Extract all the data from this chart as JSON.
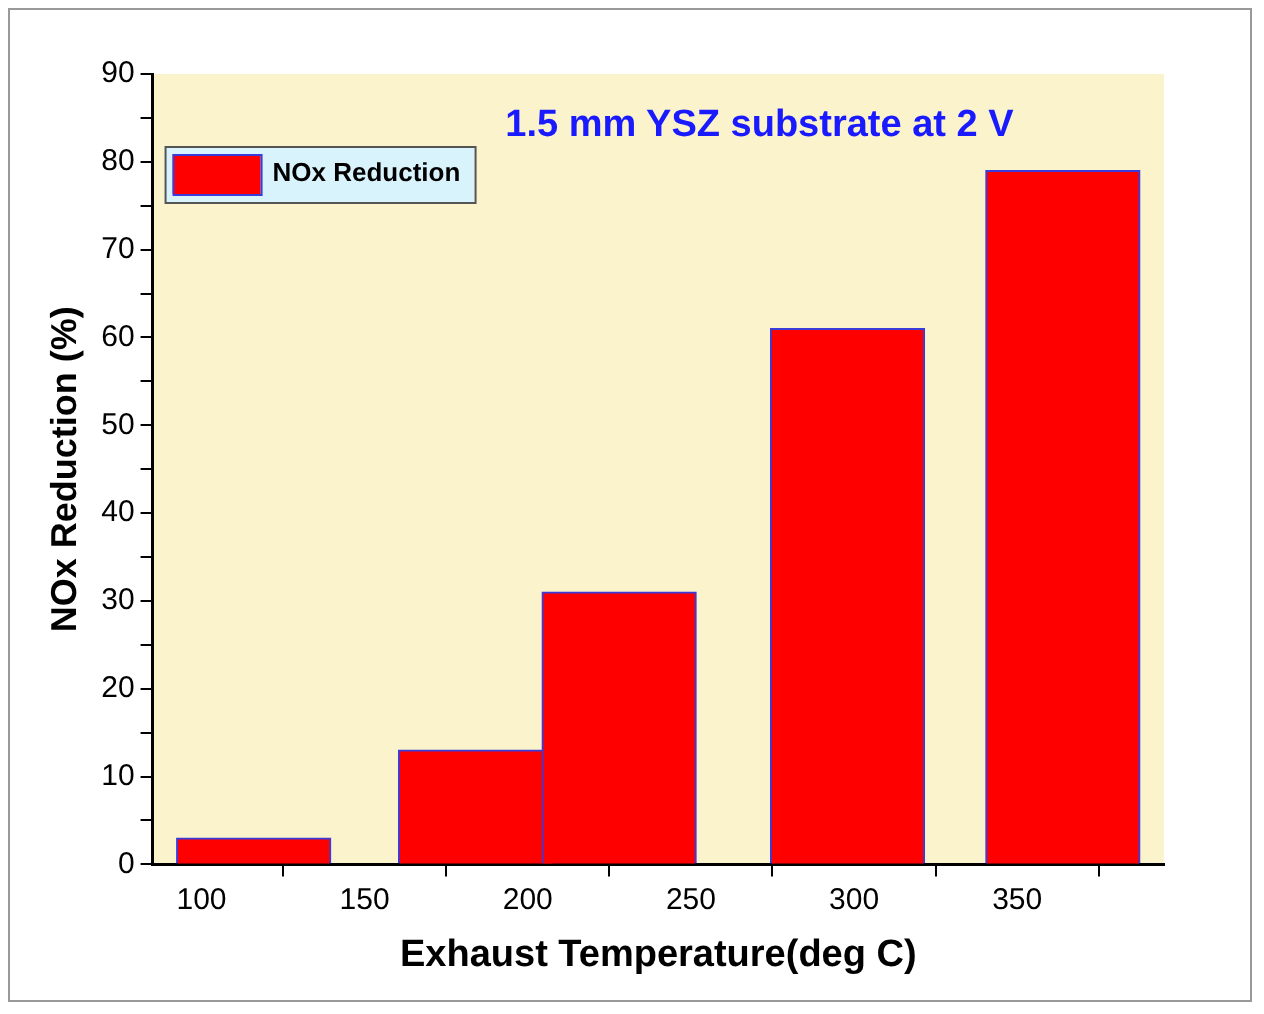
{
  "chart_data": {
    "type": "bar",
    "title": "1.5 mm YSZ substrate at 2 V",
    "xlabel": "Exhaust Temperature(deg C)",
    "ylabel": "NOx Reduction (%)",
    "x": [
      116,
      184,
      228,
      298,
      364
    ],
    "series": [
      {
        "name": "NOx Reduction",
        "color": "#ff0000",
        "values": [
          3,
          13,
          31,
          61,
          79
        ]
      }
    ],
    "xlim": [
      85,
      395
    ],
    "xticks": [
      100,
      150,
      200,
      250,
      300,
      350
    ],
    "ylim": [
      0,
      90
    ],
    "yticks": [
      0,
      {
        "value": 5,
        "label": null
      },
      10,
      {
        "value": 15,
        "label": null
      },
      20,
      {
        "value": 25,
        "label": null
      },
      30,
      {
        "value": 35,
        "label": null
      },
      40,
      {
        "value": 45,
        "label": null
      },
      50,
      {
        "value": 55,
        "label": null
      },
      60,
      {
        "value": 65,
        "label": null
      },
      70,
      {
        "value": 75,
        "label": null
      },
      80,
      {
        "value": 85,
        "label": null
      },
      90
    ],
    "grid": false,
    "legend": "top left"
  }
}
